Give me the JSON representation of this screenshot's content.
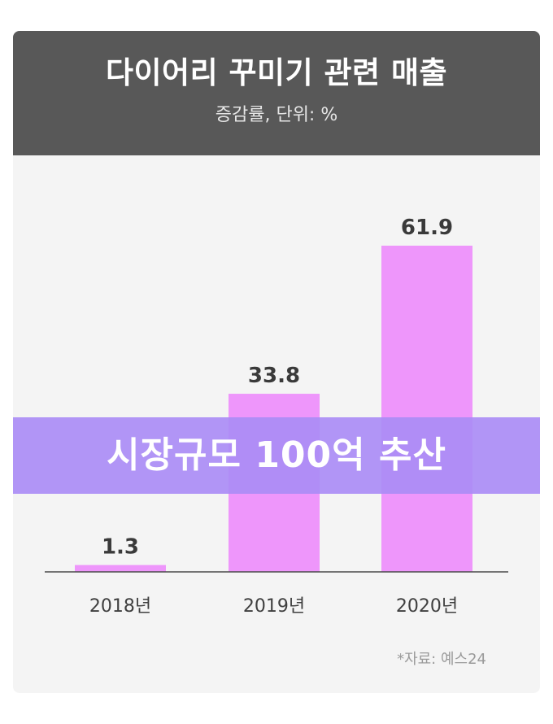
{
  "header": {
    "title": "다이어리 꾸미기 관련 매출",
    "subtitle": "증감률, 단위: %"
  },
  "banner": {
    "text": "시장규모 100억 추산"
  },
  "source": "*자료: 예스24",
  "colors": {
    "header_bg": "#585858",
    "card_bg": "#f4f4f4",
    "bar": "#ee96fb",
    "banner": "#aa8cf5",
    "value_label": "#3a3a3a",
    "axis": "#4a4a4a"
  },
  "chart_data": {
    "type": "bar",
    "title": "다이어리 꾸미기 관련 매출",
    "subtitle": "증감률, 단위: %",
    "categories": [
      "2018년",
      "2019년",
      "2020년"
    ],
    "values": [
      1.3,
      33.8,
      61.9
    ],
    "value_labels": [
      "1.3",
      "33.8",
      "61.9"
    ],
    "ylim": [
      0,
      61.9
    ],
    "grid": false,
    "legend": "none"
  }
}
